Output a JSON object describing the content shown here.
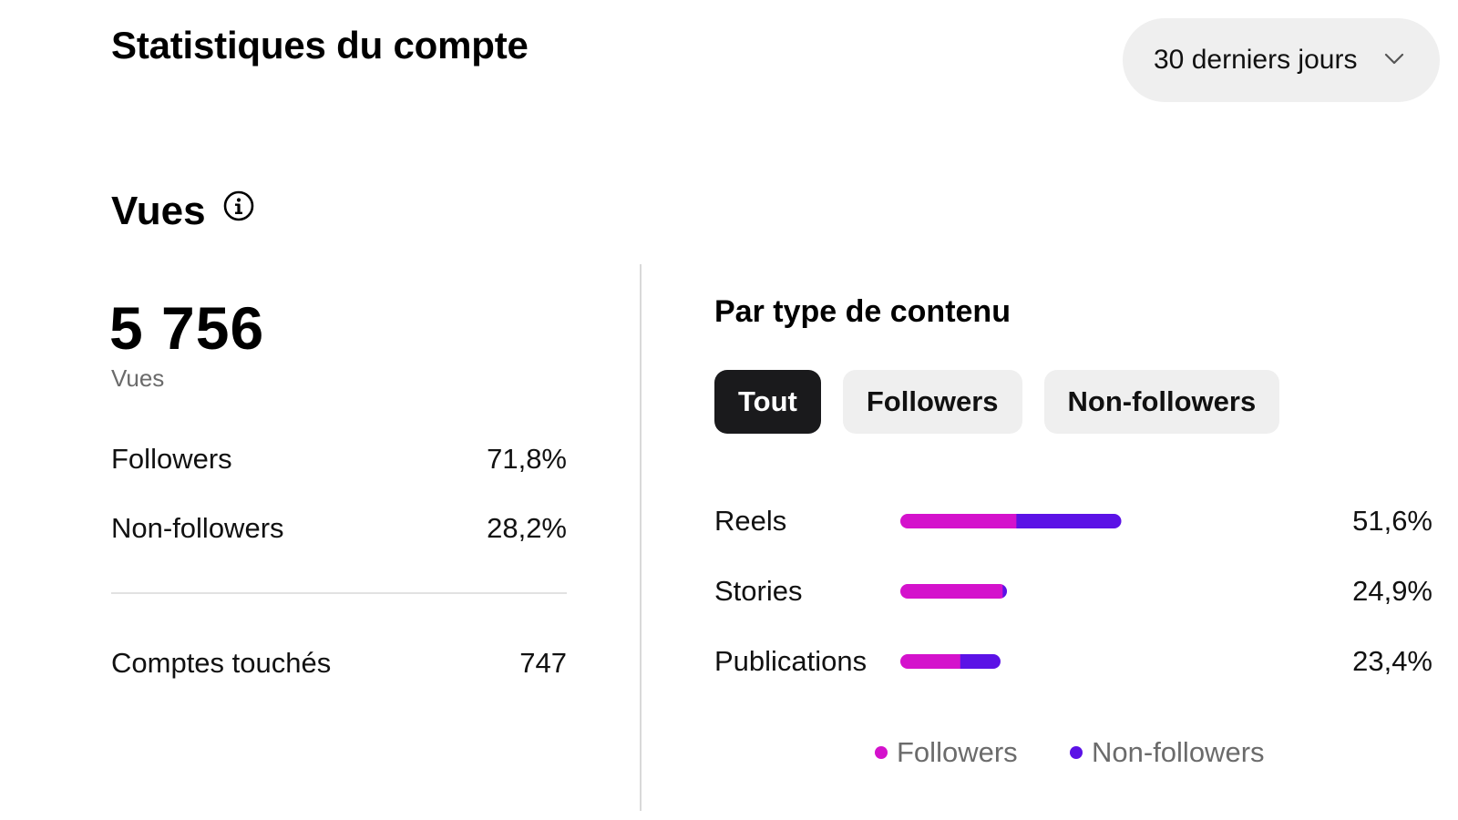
{
  "header": {
    "title": "Statistiques du compte",
    "period": {
      "selected": "30 derniers jours",
      "icon": "chevron-down-icon"
    }
  },
  "views": {
    "section_title": "Vues",
    "info_icon": "info-icon",
    "total": "5 756",
    "total_caption": "Vues",
    "breakdown": [
      {
        "label": "Followers",
        "value": "71,8%"
      },
      {
        "label": "Non-followers",
        "value": "28,2%"
      }
    ],
    "accounts_reached": {
      "label": "Comptes touchés",
      "value": "747"
    }
  },
  "content_type": {
    "title": "Par type de contenu",
    "tabs": [
      {
        "label": "Tout",
        "active": true
      },
      {
        "label": "Followers",
        "active": false
      },
      {
        "label": "Non-followers",
        "active": false
      }
    ]
  },
  "colors": {
    "followers": "#d412cc",
    "non_followers": "#5b12e6"
  },
  "chart_data": {
    "type": "bar",
    "orientation": "horizontal",
    "stacked": true,
    "categories": [
      "Reels",
      "Stories",
      "Publications"
    ],
    "totals": [
      51.6,
      24.9,
      23.4
    ],
    "total_labels": [
      "51,6%",
      "24,9%",
      "23,4%"
    ],
    "series": [
      {
        "name": "Followers",
        "values": [
          27.1,
          23.9,
          14.0
        ]
      },
      {
        "name": "Non-followers",
        "values": [
          24.5,
          1.0,
          9.4
        ]
      }
    ],
    "legend": [
      "Followers",
      "Non-followers"
    ],
    "legend_position": "bottom"
  }
}
